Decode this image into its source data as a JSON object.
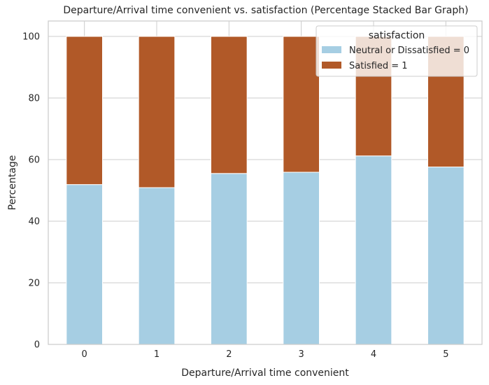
{
  "chart_data": {
    "type": "bar",
    "stacked": true,
    "title": "Departure/Arrival time convenient vs. satisfaction (Percentage Stacked Bar Graph)",
    "xlabel": "Departure/Arrival time convenient",
    "ylabel": "Percentage",
    "categories": [
      "0",
      "1",
      "2",
      "3",
      "4",
      "5"
    ],
    "ylim": [
      0,
      105
    ],
    "yticks": [
      0,
      20,
      40,
      60,
      80,
      100
    ],
    "grid": true,
    "legend": {
      "title": "satisfaction",
      "placement": "top-right"
    },
    "series": [
      {
        "name": "Neutral or Dissatisfied = 0",
        "values": [
          51.9,
          50.9,
          55.5,
          55.9,
          61.2,
          57.6
        ],
        "color": "#a6cee3"
      },
      {
        "name": "Satisfied = 1",
        "values": [
          48.1,
          49.1,
          44.5,
          44.1,
          38.8,
          42.4
        ],
        "color": "#b15928"
      }
    ]
  }
}
